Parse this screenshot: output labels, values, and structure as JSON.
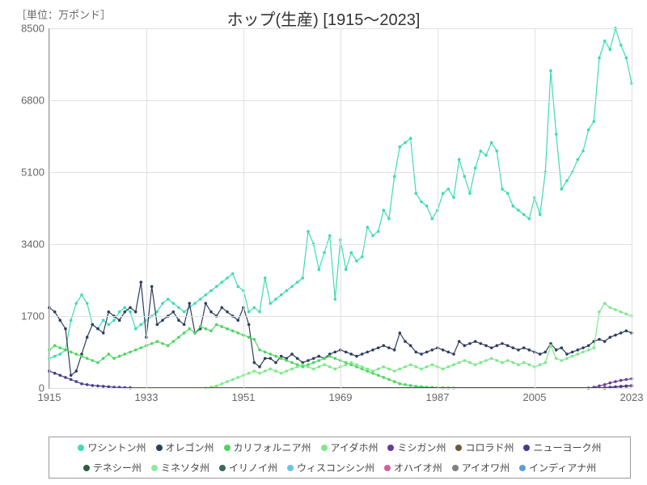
{
  "unit_label": "［単位：万ポンド］",
  "title": "ホップ(生産) [1915～2023]",
  "chart": {
    "type": "line",
    "xlim": [
      1915,
      2023
    ],
    "ylim": [
      0,
      8500
    ],
    "xticks": [
      1915,
      1933,
      1951,
      1969,
      1987,
      2005,
      2023
    ],
    "yticks": [
      0,
      1700,
      3400,
      5100,
      6800,
      8500
    ],
    "background_color": "#ffffff",
    "grid_color": "#e0e0e0",
    "axis_color": "#999999",
    "text_color": "#666666",
    "title_fontsize": 20,
    "label_fontsize": 13,
    "marker_radius": 1.8,
    "line_width": 1.2,
    "series": [
      {
        "name": "ワシントン州",
        "color": "#3edbb3",
        "years": [
          1915,
          1916,
          1917,
          1918,
          1919,
          1920,
          1921,
          1922,
          1923,
          1924,
          1925,
          1926,
          1927,
          1928,
          1929,
          1930,
          1931,
          1932,
          1933,
          1934,
          1935,
          1936,
          1937,
          1938,
          1939,
          1940,
          1941,
          1942,
          1943,
          1944,
          1945,
          1946,
          1947,
          1948,
          1949,
          1950,
          1951,
          1952,
          1953,
          1954,
          1955,
          1956,
          1957,
          1958,
          1959,
          1960,
          1961,
          1962,
          1963,
          1964,
          1965,
          1966,
          1967,
          1968,
          1969,
          1970,
          1971,
          1972,
          1973,
          1974,
          1975,
          1976,
          1977,
          1978,
          1979,
          1980,
          1981,
          1982,
          1983,
          1984,
          1985,
          1986,
          1987,
          1988,
          1989,
          1990,
          1991,
          1992,
          1993,
          1994,
          1995,
          1996,
          1997,
          1998,
          1999,
          2000,
          2001,
          2002,
          2003,
          2004,
          2005,
          2006,
          2007,
          2008,
          2009,
          2010,
          2011,
          2012,
          2013,
          2014,
          2015,
          2016,
          2017,
          2018,
          2019,
          2020,
          2021,
          2022,
          2023
        ],
        "values": [
          700,
          750,
          800,
          900,
          1600,
          2000,
          2200,
          2000,
          1500,
          1400,
          1600,
          1500,
          1600,
          1800,
          1900,
          1800,
          1400,
          1500,
          1600,
          1700,
          1800,
          2000,
          2100,
          2000,
          1900,
          1800,
          1900,
          2000,
          2100,
          2200,
          2300,
          2400,
          2500,
          2600,
          2700,
          2400,
          2300,
          1800,
          1900,
          1800,
          2600,
          2000,
          2100,
          2200,
          2300,
          2400,
          2500,
          2600,
          3700,
          3400,
          2800,
          3200,
          3600,
          2100,
          3500,
          2800,
          3200,
          3000,
          3100,
          3800,
          3600,
          3700,
          4200,
          4000,
          5000,
          5700,
          5800,
          5900,
          4600,
          4400,
          4300,
          4000,
          4200,
          4600,
          4700,
          4500,
          5400,
          5000,
          4600,
          5200,
          5600,
          5500,
          5800,
          5600,
          4700,
          4600,
          4300,
          4200,
          4100,
          4000,
          4500,
          4100,
          5100,
          7500,
          6000,
          4700,
          4900,
          5100,
          5400,
          5600,
          6100,
          6300,
          7800,
          8200,
          8000,
          8500,
          8100,
          7800,
          7200
        ]
      },
      {
        "name": "オレゴン州",
        "color": "#2d3e5f",
        "years": [
          1915,
          1916,
          1917,
          1918,
          1919,
          1920,
          1921,
          1922,
          1923,
          1924,
          1925,
          1926,
          1927,
          1928,
          1929,
          1930,
          1931,
          1932,
          1933,
          1934,
          1935,
          1936,
          1937,
          1938,
          1939,
          1940,
          1941,
          1942,
          1943,
          1944,
          1945,
          1946,
          1947,
          1948,
          1949,
          1950,
          1951,
          1952,
          1953,
          1954,
          1955,
          1956,
          1957,
          1958,
          1959,
          1960,
          1961,
          1962,
          1963,
          1964,
          1965,
          1966,
          1967,
          1968,
          1969,
          1970,
          1971,
          1972,
          1973,
          1974,
          1975,
          1976,
          1977,
          1978,
          1979,
          1980,
          1981,
          1982,
          1983,
          1984,
          1985,
          1986,
          1987,
          1988,
          1989,
          1990,
          1991,
          1992,
          1993,
          1994,
          1995,
          1996,
          1997,
          1998,
          1999,
          2000,
          2001,
          2002,
          2003,
          2004,
          2005,
          2006,
          2007,
          2008,
          2009,
          2010,
          2011,
          2012,
          2013,
          2014,
          2015,
          2016,
          2017,
          2018,
          2019,
          2020,
          2021,
          2022,
          2023
        ],
        "values": [
          1900,
          1800,
          1600,
          1400,
          300,
          400,
          800,
          1200,
          1500,
          1400,
          1300,
          1800,
          1700,
          1600,
          1800,
          1900,
          1800,
          2500,
          1200,
          2400,
          1500,
          1600,
          1700,
          1800,
          1600,
          1500,
          2000,
          1300,
          1400,
          2000,
          1800,
          1700,
          1900,
          1800,
          1700,
          1600,
          1900,
          1500,
          600,
          500,
          700,
          700,
          600,
          750,
          700,
          800,
          700,
          600,
          650,
          700,
          750,
          700,
          800,
          850,
          900,
          850,
          800,
          750,
          800,
          850,
          900,
          950,
          1000,
          950,
          900,
          1300,
          1100,
          1000,
          850,
          800,
          850,
          900,
          950,
          900,
          850,
          800,
          1100,
          1000,
          1050,
          1100,
          1050,
          1000,
          950,
          1000,
          1050,
          1000,
          950,
          900,
          950,
          900,
          850,
          800,
          850,
          1050,
          900,
          950,
          800,
          850,
          900,
          950,
          1000,
          1100,
          1150,
          1100,
          1200,
          1250,
          1300,
          1350,
          1300,
          1250
        ]
      },
      {
        "name": "カリフォルニア州",
        "color": "#4fd45f",
        "years": [
          1915,
          1916,
          1917,
          1918,
          1919,
          1920,
          1921,
          1922,
          1923,
          1924,
          1925,
          1926,
          1927,
          1928,
          1929,
          1930,
          1931,
          1932,
          1933,
          1934,
          1935,
          1936,
          1937,
          1938,
          1939,
          1940,
          1941,
          1942,
          1943,
          1944,
          1945,
          1946,
          1947,
          1948,
          1949,
          1950,
          1951,
          1952,
          1953,
          1954,
          1955,
          1956,
          1957,
          1958,
          1959,
          1960,
          1961,
          1962,
          1963,
          1964,
          1965,
          1966,
          1967,
          1968,
          1969,
          1970,
          1971,
          1972,
          1973,
          1974,
          1975,
          1976,
          1977,
          1978,
          1979,
          1980,
          1981,
          1982,
          1983,
          1984,
          1985,
          1986,
          1987,
          1988,
          1989,
          1990
        ],
        "values": [
          900,
          1000,
          950,
          900,
          850,
          800,
          750,
          700,
          650,
          600,
          700,
          800,
          700,
          750,
          800,
          850,
          900,
          950,
          1000,
          1050,
          1100,
          1050,
          1000,
          1100,
          1200,
          1300,
          1400,
          1300,
          1450,
          1400,
          1350,
          1500,
          1450,
          1400,
          1350,
          1300,
          1250,
          1200,
          1150,
          900,
          850,
          800,
          750,
          700,
          650,
          600,
          550,
          500,
          550,
          600,
          650,
          700,
          750,
          700,
          650,
          600,
          550,
          500,
          450,
          400,
          350,
          300,
          250,
          200,
          150,
          100,
          80,
          60,
          40,
          30,
          20,
          15,
          10,
          5,
          2,
          0
        ]
      },
      {
        "name": "アイダホ州",
        "color": "#7de88a",
        "years": [
          1944,
          1945,
          1946,
          1947,
          1948,
          1949,
          1950,
          1951,
          1952,
          1953,
          1954,
          1955,
          1956,
          1957,
          1958,
          1959,
          1960,
          1961,
          1962,
          1963,
          1964,
          1965,
          1966,
          1967,
          1968,
          1969,
          1970,
          1971,
          1972,
          1973,
          1974,
          1975,
          1976,
          1977,
          1978,
          1979,
          1980,
          1981,
          1982,
          1983,
          1984,
          1985,
          1986,
          1987,
          1988,
          1989,
          1990,
          1991,
          1992,
          1993,
          1994,
          1995,
          1996,
          1997,
          1998,
          1999,
          2000,
          2001,
          2002,
          2003,
          2004,
          2005,
          2006,
          2007,
          2008,
          2009,
          2010,
          2011,
          2012,
          2013,
          2014,
          2015,
          2016,
          2017,
          2018,
          2019,
          2020,
          2021,
          2022,
          2023
        ],
        "values": [
          0,
          20,
          50,
          100,
          150,
          200,
          250,
          300,
          350,
          400,
          350,
          400,
          450,
          400,
          350,
          400,
          450,
          500,
          550,
          500,
          450,
          500,
          550,
          500,
          450,
          500,
          550,
          600,
          550,
          500,
          450,
          400,
          450,
          500,
          450,
          400,
          450,
          500,
          550,
          500,
          450,
          500,
          550,
          500,
          450,
          500,
          550,
          600,
          650,
          600,
          550,
          600,
          650,
          700,
          650,
          600,
          650,
          600,
          550,
          600,
          550,
          500,
          550,
          600,
          1000,
          700,
          650,
          700,
          750,
          800,
          850,
          900,
          950,
          1800,
          2000,
          1900,
          1850,
          1800,
          1750,
          1700
        ]
      },
      {
        "name": "ミシガン州",
        "color": "#6b3a9c",
        "years": [
          2015,
          2016,
          2017,
          2018,
          2019,
          2020,
          2021,
          2022,
          2023
        ],
        "values": [
          0,
          20,
          50,
          80,
          120,
          150,
          180,
          200,
          220
        ]
      },
      {
        "name": "コロラド州",
        "color": "#6b5a3a",
        "years": [
          2018,
          2019,
          2020,
          2021,
          2022,
          2023
        ],
        "values": [
          0,
          10,
          20,
          30,
          40,
          50
        ]
      },
      {
        "name": "ニューヨーク州",
        "color": "#4a3a8c",
        "years": [
          1915,
          1916,
          1917,
          1918,
          1919,
          1920,
          1921,
          1922,
          1923,
          1924,
          1925,
          1926,
          1927,
          1928,
          1929,
          1930,
          2018,
          2019,
          2020,
          2021,
          2022,
          2023
        ],
        "values": [
          400,
          350,
          300,
          250,
          200,
          150,
          100,
          80,
          60,
          50,
          40,
          30,
          20,
          15,
          10,
          5,
          10,
          20,
          30,
          40,
          50,
          60
        ]
      }
    ],
    "legend_items": [
      {
        "label": "ワシントン州",
        "color": "#3edbb3"
      },
      {
        "label": "オレゴン州",
        "color": "#2d3e5f"
      },
      {
        "label": "カリフォルニア州",
        "color": "#4fd45f"
      },
      {
        "label": "アイダホ州",
        "color": "#7de88a"
      },
      {
        "label": "ミシガン州",
        "color": "#6b3a9c"
      },
      {
        "label": "コロラド州",
        "color": "#6b5a3a"
      },
      {
        "label": "ニューヨーク州",
        "color": "#4a3a8c"
      },
      {
        "label": "テネシー州",
        "color": "#2d5f3e"
      },
      {
        "label": "ミネソタ州",
        "color": "#8de8a0"
      },
      {
        "label": "イリノイ州",
        "color": "#3a6b5a"
      },
      {
        "label": "ウィスコンシン州",
        "color": "#6bc4e8"
      },
      {
        "label": "オハイオ州",
        "color": "#d45fa0"
      },
      {
        "label": "アイオワ州",
        "color": "#808080"
      },
      {
        "label": "インディアナ州",
        "color": "#5fa0d4"
      }
    ]
  }
}
